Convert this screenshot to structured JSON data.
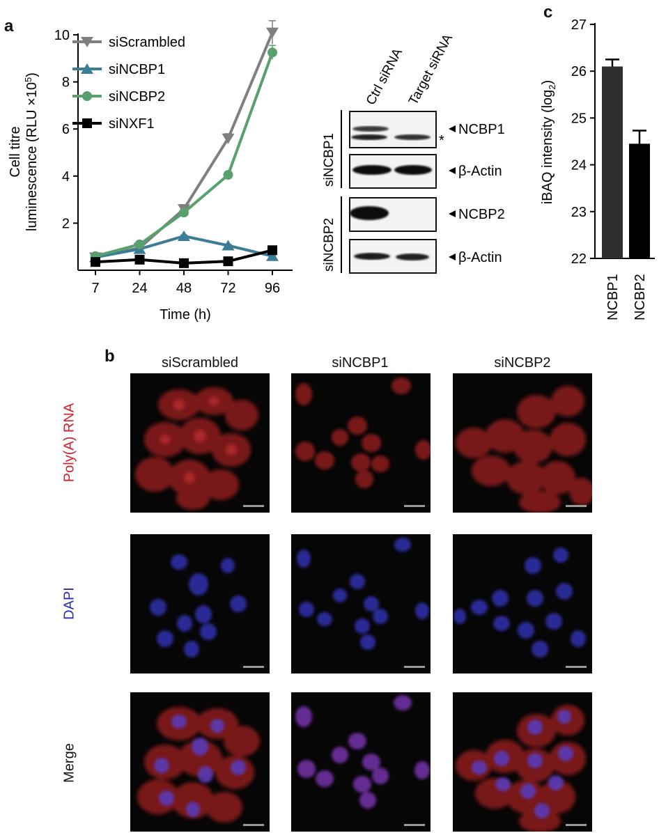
{
  "panels": {
    "a": "a",
    "b": "b",
    "c": "c"
  },
  "chart_data": [
    {
      "type": "line",
      "ylabel_line1": "Cell titre",
      "ylabel_line2": "luminescence (RLU ×10",
      "ylabel_sup": "5",
      "ylabel_end": ")",
      "xlabel": "Time (h)",
      "categories": [
        "7",
        "24",
        "48",
        "72",
        "96"
      ],
      "ylim": [
        0,
        10
      ],
      "yticks": [
        "2",
        "4",
        "6",
        "8",
        "10"
      ],
      "legend_position": "top-left",
      "series": [
        {
          "name": "siScrambled",
          "color": "#7f7f7f",
          "marker": "triangle-down",
          "values": [
            0.55,
            0.95,
            2.6,
            5.6,
            10.1
          ],
          "errors": [
            0.05,
            0.05,
            0.1,
            0.2,
            0.5
          ]
        },
        {
          "name": "siNCBP1",
          "color": "#3b7d96",
          "marker": "triangle-up",
          "values": [
            0.55,
            0.9,
            1.45,
            1.05,
            0.6
          ],
          "errors": [
            0.03,
            0.05,
            0.05,
            0.05,
            0.05
          ]
        },
        {
          "name": "siNCBP2",
          "color": "#58a06e",
          "marker": "circle",
          "values": [
            0.6,
            1.1,
            2.45,
            4.05,
            9.25
          ],
          "errors": [
            0.03,
            0.05,
            0.1,
            0.1,
            0.3
          ]
        },
        {
          "name": "siNXF1",
          "color": "#000000",
          "marker": "square",
          "values": [
            0.35,
            0.45,
            0.3,
            0.38,
            0.85
          ],
          "errors": [
            0.02,
            0.02,
            0.02,
            0.02,
            0.05
          ]
        }
      ]
    },
    {
      "type": "bar",
      "ylabel": "iBAQ intensity (log",
      "ylabel_sub": "2",
      "ylabel_end": ")",
      "categories": [
        "NCBP1",
        "NCBP2"
      ],
      "values": [
        26.1,
        24.45
      ],
      "errors": [
        0.15,
        0.28
      ],
      "colors": [
        "#2e2e2e",
        "#000000"
      ],
      "ylim": [
        22,
        27
      ],
      "yticks": [
        "22",
        "23",
        "24",
        "25",
        "26",
        "27"
      ]
    }
  ],
  "western": {
    "lanes": [
      "Ctrl siRNA",
      "Target siRNA"
    ],
    "groups": [
      {
        "label": "siNCBP1",
        "blots": [
          {
            "target": "NCBP1",
            "asterisk": "*"
          },
          {
            "target": "β-Actin"
          }
        ]
      },
      {
        "label": "siNCBP2",
        "blots": [
          {
            "target": "NCBP2"
          },
          {
            "target": "β-Actin"
          }
        ]
      }
    ]
  },
  "microscopy": {
    "columns": [
      "siScrambled",
      "siNCBP1",
      "siNCBP2"
    ],
    "rows": [
      "Poly(A) RNA",
      "DAPI",
      "Merge"
    ],
    "row_colors": [
      "#d21f2a",
      "#2b2bb0",
      "#111111"
    ]
  }
}
